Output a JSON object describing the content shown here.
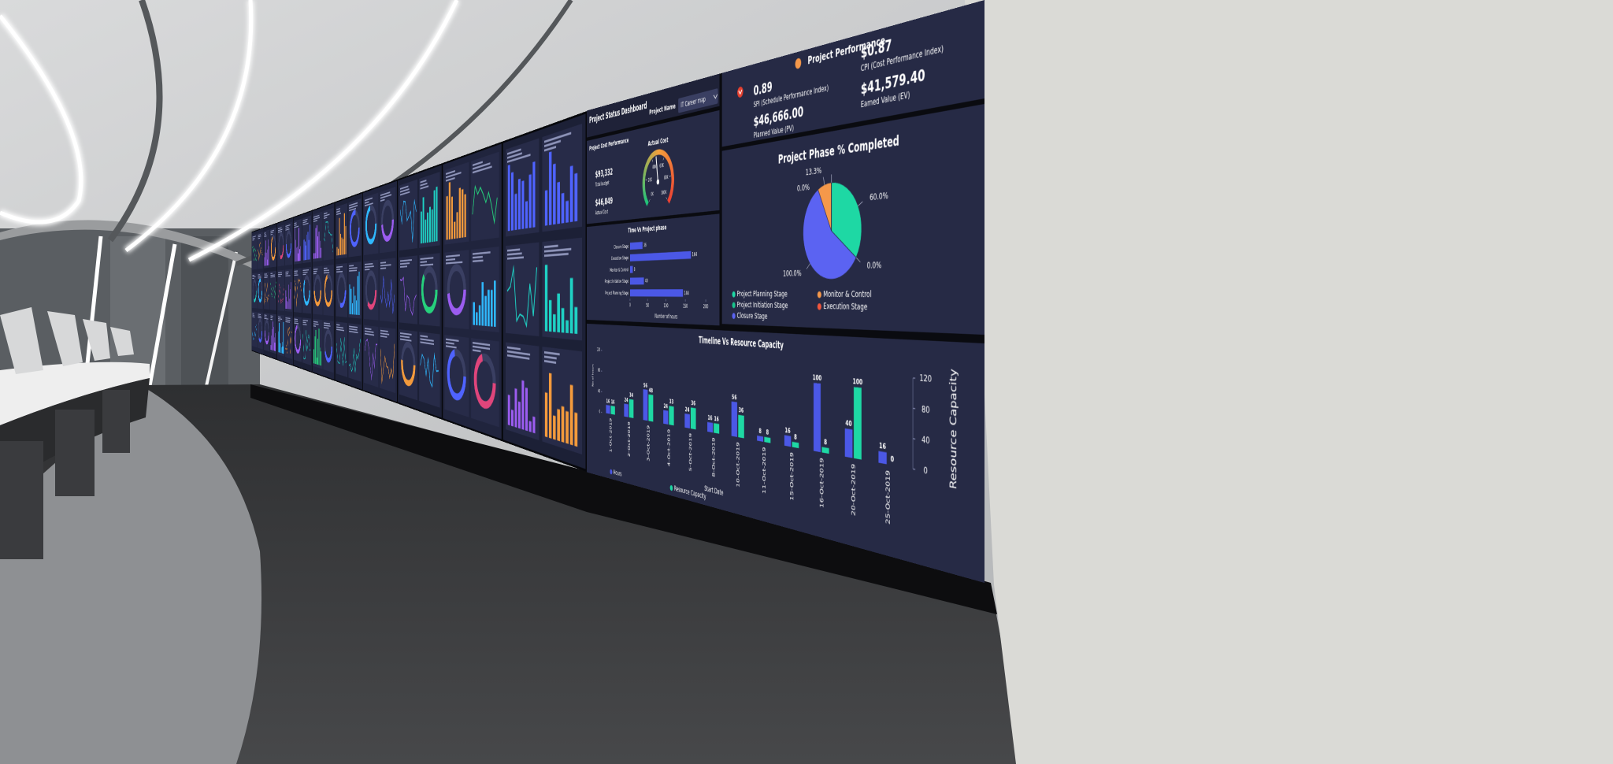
{
  "dashboard": {
    "title": "Project Status Dashboard",
    "project_name_label": "Project Name",
    "project_name": "IT Career map",
    "performance_title": "Project Performance",
    "kpis": [
      {
        "value": "$0.87",
        "label": "CPI (Cost Performance Index)"
      },
      {
        "value": "$41,579.40",
        "label": "Earned Value (EV)"
      },
      {
        "value": "0.89",
        "label": "SPI (Schedule Performance Index)"
      },
      {
        "value": "$46,666.00",
        "label": "Planned Value (PV)"
      }
    ],
    "cost_title": "Project Cost Performance",
    "budget": {
      "value": "$93,332",
      "label": "Total budget"
    },
    "actual": {
      "value": "$46,849",
      "label": "Actual Cost"
    }
  },
  "chart_data": [
    {
      "type": "gauge",
      "title": "Actual Cost",
      "value": 46.849,
      "ylim": [
        0,
        100
      ],
      "yticks": [
        {
          "value": 0,
          "label": "0K"
        },
        {
          "value": 20,
          "label": "20K"
        },
        {
          "value": 40,
          "label": "40K"
        },
        {
          "value": 60,
          "label": "60K"
        },
        {
          "value": 80,
          "label": "80K"
        },
        {
          "value": 100,
          "label": "100K"
        }
      ]
    },
    {
      "type": "hbar",
      "title": "Time Vs Project phase",
      "categories": [
        "Closure Stage",
        "Execution Stage",
        "Monitor & Control",
        "Project Initiation Stage",
        "Project Planning Stage"
      ],
      "values": [
        36,
        164,
        8,
        40,
        144
      ],
      "color": "#4b58e6",
      "xlim": [
        0,
        200
      ],
      "xticks": [
        0,
        50,
        100,
        150,
        200
      ],
      "xlabel": "Number of hours"
    },
    {
      "type": "pie",
      "title": "Project Phase % Completed",
      "categories": [
        "Project Planning Stage",
        "Project Initiation Stage",
        "Closure Stage",
        "Monitor & Control",
        "Execution Stage"
      ],
      "values": [
        60,
        0,
        100,
        13.3,
        0
      ],
      "value_labels": [
        "60.0%",
        "0.0%",
        "100.0%",
        "13.3%",
        "0.0%"
      ],
      "colors": [
        "#1ed8a4",
        "#19c48c",
        "#5b63f2",
        "#f5984a",
        "#f2563c"
      ]
    },
    {
      "type": "combo",
      "title": "Timeline Vs Resource Capacity",
      "x": [
        "1-Oct-2019",
        "2-Oct-2019",
        "3-Oct-2019",
        "4-Oct-2019",
        "5-Oct-2019",
        "8-Oct-2019",
        "10-Oct-2019",
        "11-Oct-2019",
        "15-Oct-2019",
        "16-Oct-2019",
        "20-Oct-2019",
        "25-Oct-2019"
      ],
      "series": [
        {
          "name": "Hours",
          "color": "#4b58e6",
          "values": [
            16,
            24,
            56,
            24,
            24,
            16,
            56,
            8,
            16,
            100,
            40,
            16
          ]
        },
        {
          "name": "Resource Capacity",
          "color": "#1ed8a4",
          "axis": "y2",
          "values": [
            16,
            34,
            48,
            33,
            36,
            16,
            36,
            8,
            8,
            8,
            100,
            0
          ]
        }
      ],
      "xlabel": "Start Date",
      "ylabel": "No of hours",
      "y2label": "Resource Capacity",
      "ylim": [
        0,
        120
      ],
      "yticks": [
        0,
        40,
        80,
        120
      ],
      "y2lim": [
        0,
        120
      ],
      "y2ticks": [
        0,
        40,
        80,
        120
      ]
    }
  ]
}
